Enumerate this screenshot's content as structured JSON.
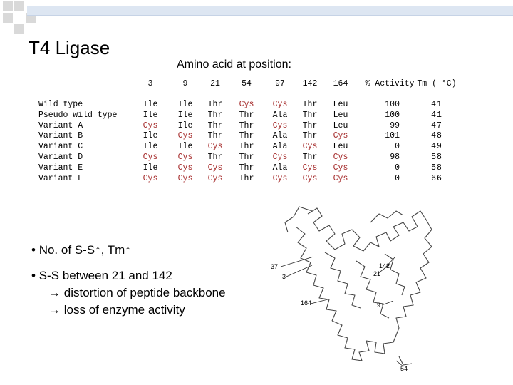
{
  "title": "T4 Ligase",
  "subtitle": "Amino acid at position:",
  "table": {
    "position_headers": [
      "3",
      "9",
      "21",
      "54",
      "97",
      "142",
      "164"
    ],
    "activity_header": "% Activity",
    "tm_header": "Tm ( °C)",
    "rows": [
      {
        "name": "Wild type",
        "residues": [
          "Ile",
          "Ile",
          "Thr",
          "Cys",
          "Cys",
          "Thr",
          "Leu"
        ],
        "activity": "100",
        "tm": "41"
      },
      {
        "name": "Pseudo wild type",
        "residues": [
          "Ile",
          "Ile",
          "Thr",
          "Thr",
          "Ala",
          "Thr",
          "Leu"
        ],
        "activity": "100",
        "tm": "41"
      },
      {
        "name": "Variant A",
        "residues": [
          "Cys",
          "Ile",
          "Thr",
          "Thr",
          "Cys",
          "Thr",
          "Leu"
        ],
        "activity": "99",
        "tm": "47"
      },
      {
        "name": "Variant B",
        "residues": [
          "Ile",
          "Cys",
          "Thr",
          "Thr",
          "Ala",
          "Thr",
          "Cys"
        ],
        "activity": "101",
        "tm": "48"
      },
      {
        "name": "Variant C",
        "residues": [
          "Ile",
          "Ile",
          "Cys",
          "Thr",
          "Ala",
          "Cys",
          "Leu"
        ],
        "activity": "0",
        "tm": "49"
      },
      {
        "name": "Variant D",
        "residues": [
          "Cys",
          "Cys",
          "Thr",
          "Thr",
          "Cys",
          "Thr",
          "Cys"
        ],
        "activity": "98",
        "tm": "58"
      },
      {
        "name": "Variant E",
        "residues": [
          "Ile",
          "Cys",
          "Cys",
          "Thr",
          "Ala",
          "Cys",
          "Cys"
        ],
        "activity": "0",
        "tm": "58"
      },
      {
        "name": "Variant F",
        "residues": [
          "Cys",
          "Cys",
          "Cys",
          "Thr",
          "Cys",
          "Cys",
          "Cys"
        ],
        "activity": "0",
        "tm": "66"
      }
    ]
  },
  "bullets": [
    {
      "text": "No. of S-S↑, Tm↑",
      "subs": []
    },
    {
      "text": "S-S between 21 and 142",
      "subs": [
        "distortion of peptide backbone",
        "loss of enzyme activity"
      ]
    }
  ],
  "structure_labels": [
    "37",
    "3",
    "142",
    "21",
    "164",
    "9",
    "54"
  ],
  "colors": {
    "cys": "#a52a2a",
    "header_bar": "#dde6f2",
    "squares": "#d9d9d9"
  }
}
